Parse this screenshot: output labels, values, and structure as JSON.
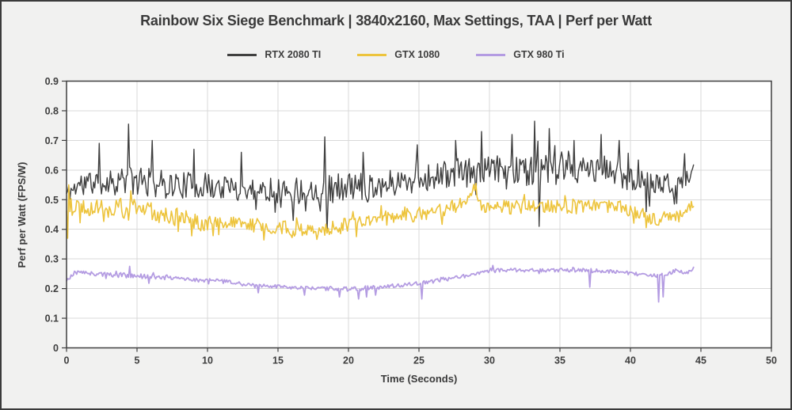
{
  "chart_data": {
    "type": "line",
    "title": "Rainbow Six Siege Benchmark | 3840x2160, Max Settings, TAA | Perf per Watt",
    "xlabel": "Time (Seconds)",
    "ylabel": "Perf per Watt (FPS/W)",
    "xlim": [
      0,
      50
    ],
    "ylim": [
      0,
      0.9
    ],
    "xtick_step": 5,
    "ytick_step": 0.1,
    "grid": true,
    "legend_position": "top-center",
    "colors": {
      "figure_bg": "#f1f1f0",
      "figure_border": "#3b3b3b",
      "plot_bg": "#ffffff",
      "grid": "#d9d9d9",
      "axis": "#3f3f3f",
      "text": "#3a3a3a"
    },
    "series": [
      {
        "name": "RTX 2080 TI",
        "color": "#404040",
        "width": 1.4,
        "seed": 11,
        "dt": 0.08,
        "t_end": 44.5,
        "trend": [
          [
            0,
            0.52,
            0.06
          ],
          [
            1,
            0.555,
            0.08
          ],
          [
            2,
            0.56,
            0.09
          ],
          [
            4,
            0.565,
            0.1
          ],
          [
            6,
            0.555,
            0.1
          ],
          [
            8,
            0.55,
            0.09
          ],
          [
            10,
            0.545,
            0.09
          ],
          [
            13,
            0.535,
            0.08
          ],
          [
            16,
            0.53,
            0.09
          ],
          [
            19,
            0.54,
            0.1
          ],
          [
            22,
            0.55,
            0.09
          ],
          [
            25,
            0.57,
            0.09
          ],
          [
            27,
            0.585,
            0.1
          ],
          [
            29,
            0.595,
            0.1
          ],
          [
            31,
            0.6,
            0.1
          ],
          [
            33,
            0.6,
            0.11
          ],
          [
            35,
            0.595,
            0.1
          ],
          [
            37,
            0.6,
            0.1
          ],
          [
            39,
            0.595,
            0.1
          ],
          [
            40.5,
            0.565,
            0.09
          ],
          [
            42,
            0.55,
            0.08
          ],
          [
            43.5,
            0.555,
            0.07
          ],
          [
            44.2,
            0.575,
            0.05
          ],
          [
            44.5,
            0.625,
            0.02
          ]
        ],
        "spikes": [
          [
            2.3,
            0.69
          ],
          [
            4.4,
            0.755
          ],
          [
            6.1,
            0.7
          ],
          [
            9.0,
            0.67
          ],
          [
            12.4,
            0.66
          ],
          [
            16.1,
            0.43
          ],
          [
            18.3,
            0.712
          ],
          [
            18.45,
            0.39
          ],
          [
            21.0,
            0.66
          ],
          [
            24.9,
            0.685
          ],
          [
            27.6,
            0.7
          ],
          [
            29.4,
            0.73
          ],
          [
            31.6,
            0.72
          ],
          [
            33.2,
            0.765
          ],
          [
            33.5,
            0.41
          ],
          [
            34.2,
            0.74
          ],
          [
            36.0,
            0.7
          ],
          [
            37.9,
            0.72
          ],
          [
            39.2,
            0.7
          ],
          [
            41.1,
            0.46
          ],
          [
            43.8,
            0.655
          ]
        ]
      },
      {
        "name": "GTX 1080",
        "color": "#edc43d",
        "width": 1.6,
        "seed": 22,
        "dt": 0.08,
        "t_end": 44.5,
        "trend": [
          [
            0,
            0.45,
            0.1
          ],
          [
            0.5,
            0.48,
            0.06
          ],
          [
            2,
            0.475,
            0.06
          ],
          [
            4,
            0.47,
            0.07
          ],
          [
            6,
            0.46,
            0.07
          ],
          [
            8,
            0.44,
            0.06
          ],
          [
            9.5,
            0.425,
            0.06
          ],
          [
            11,
            0.42,
            0.05
          ],
          [
            13,
            0.415,
            0.05
          ],
          [
            15,
            0.405,
            0.05
          ],
          [
            17,
            0.4,
            0.05
          ],
          [
            19,
            0.405,
            0.05
          ],
          [
            21,
            0.425,
            0.05
          ],
          [
            23,
            0.44,
            0.05
          ],
          [
            25,
            0.45,
            0.05
          ],
          [
            27,
            0.465,
            0.05
          ],
          [
            28.3,
            0.5,
            0.05
          ],
          [
            28.9,
            0.545,
            0.03
          ],
          [
            29.6,
            0.465,
            0.05
          ],
          [
            31,
            0.475,
            0.05
          ],
          [
            33,
            0.475,
            0.05
          ],
          [
            35,
            0.48,
            0.05
          ],
          [
            37,
            0.475,
            0.05
          ],
          [
            39,
            0.48,
            0.045
          ],
          [
            40.5,
            0.455,
            0.04
          ],
          [
            41.8,
            0.43,
            0.04
          ],
          [
            42.8,
            0.44,
            0.04
          ],
          [
            44,
            0.465,
            0.04
          ],
          [
            44.5,
            0.48,
            0.03
          ]
        ],
        "spikes": [
          [
            0.05,
            0.37
          ],
          [
            0.15,
            0.55
          ],
          [
            4.6,
            0.53
          ],
          [
            8.9,
            0.378
          ],
          [
            10.8,
            0.382
          ],
          [
            16.0,
            0.372
          ],
          [
            20.3,
            0.46
          ],
          [
            24.0,
            0.475
          ],
          [
            29.0,
            0.555
          ]
        ]
      },
      {
        "name": "GTX 980 Ti",
        "color": "#b49ce2",
        "width": 1.8,
        "seed": 33,
        "dt": 0.08,
        "t_end": 44.5,
        "trend": [
          [
            0,
            0.225,
            0.02
          ],
          [
            0.6,
            0.255,
            0.015
          ],
          [
            2,
            0.25,
            0.015
          ],
          [
            4,
            0.245,
            0.018
          ],
          [
            6,
            0.24,
            0.015
          ],
          [
            8,
            0.235,
            0.015
          ],
          [
            9.5,
            0.228,
            0.015
          ],
          [
            11,
            0.225,
            0.015
          ],
          [
            12.5,
            0.215,
            0.012
          ],
          [
            14,
            0.21,
            0.012
          ],
          [
            16,
            0.202,
            0.012
          ],
          [
            18,
            0.2,
            0.012
          ],
          [
            20,
            0.198,
            0.015
          ],
          [
            22,
            0.204,
            0.015
          ],
          [
            24,
            0.213,
            0.012
          ],
          [
            26,
            0.224,
            0.012
          ],
          [
            28,
            0.24,
            0.015
          ],
          [
            29.5,
            0.255,
            0.012
          ],
          [
            31,
            0.263,
            0.012
          ],
          [
            33,
            0.262,
            0.012
          ],
          [
            35,
            0.262,
            0.012
          ],
          [
            37,
            0.262,
            0.012
          ],
          [
            38.5,
            0.258,
            0.012
          ],
          [
            40,
            0.252,
            0.012
          ],
          [
            41.3,
            0.243,
            0.012
          ],
          [
            42.5,
            0.246,
            0.015
          ],
          [
            43.3,
            0.262,
            0.012
          ],
          [
            44,
            0.252,
            0.01
          ],
          [
            44.5,
            0.268,
            0.008
          ]
        ],
        "spikes": [
          [
            4.5,
            0.275
          ],
          [
            5.8,
            0.218
          ],
          [
            13.6,
            0.186
          ],
          [
            16.9,
            0.178
          ],
          [
            19.4,
            0.172
          ],
          [
            20.7,
            0.165
          ],
          [
            21.3,
            0.172
          ],
          [
            21.9,
            0.178
          ],
          [
            25.2,
            0.165
          ],
          [
            30.2,
            0.278
          ],
          [
            37.1,
            0.205
          ],
          [
            42.0,
            0.155
          ],
          [
            42.35,
            0.172
          ],
          [
            44.5,
            0.272
          ]
        ]
      }
    ]
  }
}
